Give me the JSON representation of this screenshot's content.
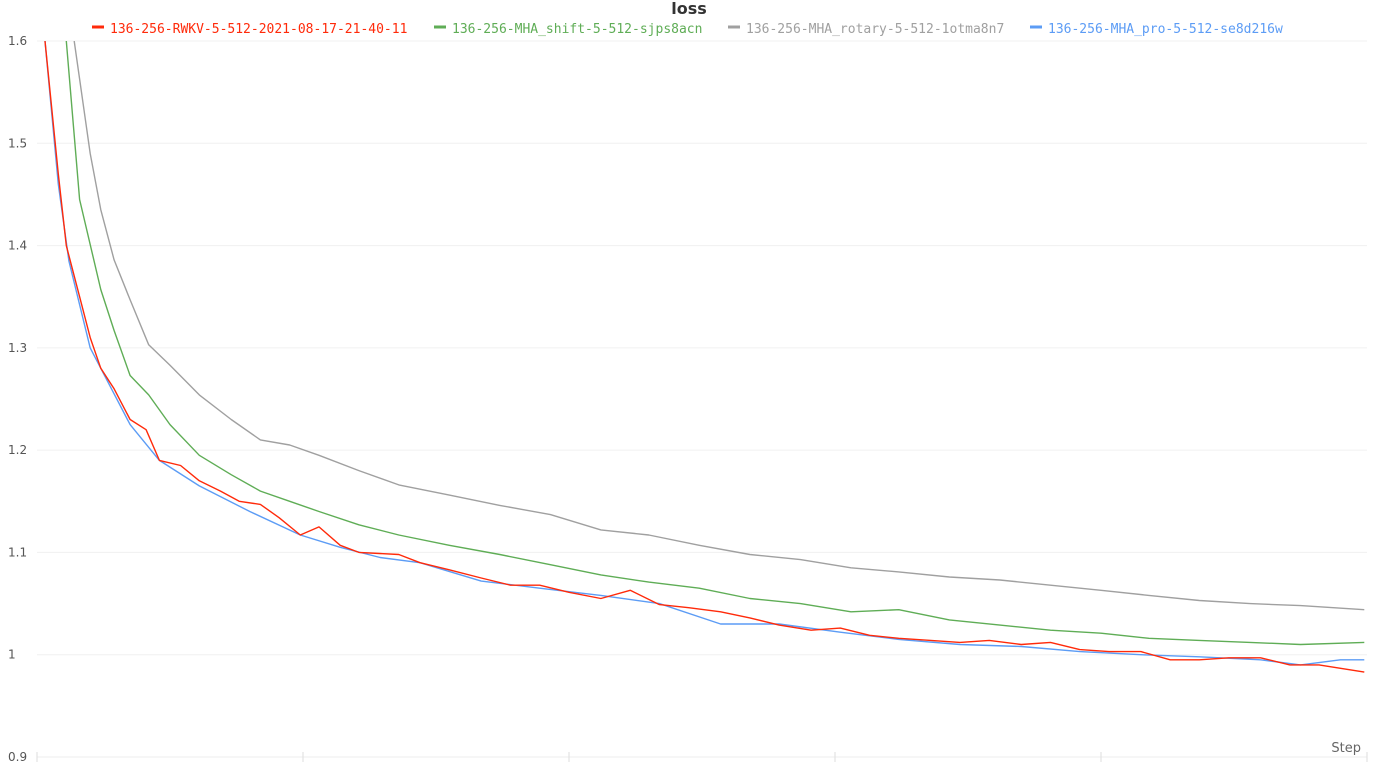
{
  "chart_data": {
    "type": "line",
    "title": "loss",
    "xlabel": "Step",
    "ylabel": "",
    "ylim": [
      0.9,
      1.6
    ],
    "xlim": [
      0,
      5
    ],
    "yticks": [
      "0.9",
      "1",
      "1.1",
      "1.2",
      "1.3",
      "1.4",
      "1.5",
      "1.6"
    ],
    "grid": true,
    "legend_position": "top",
    "series": [
      {
        "name": "136-256-RWKV-5-512-2021-08-17-21-40-11",
        "color": "#ff2a0a",
        "points": [
          [
            0.03,
            1.6
          ],
          [
            0.08,
            1.47
          ],
          [
            0.11,
            1.4
          ],
          [
            0.16,
            1.35
          ],
          [
            0.2,
            1.31
          ],
          [
            0.24,
            1.28
          ],
          [
            0.29,
            1.26
          ],
          [
            0.35,
            1.23
          ],
          [
            0.41,
            1.22
          ],
          [
            0.46,
            1.19
          ],
          [
            0.54,
            1.185
          ],
          [
            0.61,
            1.17
          ],
          [
            0.69,
            1.16
          ],
          [
            0.76,
            1.15
          ],
          [
            0.84,
            1.147
          ],
          [
            0.91,
            1.134
          ],
          [
            0.99,
            1.117
          ],
          [
            1.06,
            1.125
          ],
          [
            1.14,
            1.107
          ],
          [
            1.21,
            1.1
          ],
          [
            1.36,
            1.098
          ],
          [
            1.44,
            1.09
          ],
          [
            1.55,
            1.083
          ],
          [
            1.67,
            1.075
          ],
          [
            1.78,
            1.068
          ],
          [
            1.89,
            1.068
          ],
          [
            2.0,
            1.061
          ],
          [
            2.12,
            1.055
          ],
          [
            2.23,
            1.063
          ],
          [
            2.34,
            1.049
          ],
          [
            2.45,
            1.046
          ],
          [
            2.57,
            1.042
          ],
          [
            2.68,
            1.036
          ],
          [
            2.79,
            1.029
          ],
          [
            2.91,
            1.024
          ],
          [
            3.02,
            1.026
          ],
          [
            3.13,
            1.019
          ],
          [
            3.24,
            1.016
          ],
          [
            3.36,
            1.014
          ],
          [
            3.47,
            1.012
          ],
          [
            3.58,
            1.014
          ],
          [
            3.7,
            1.01
          ],
          [
            3.81,
            1.012
          ],
          [
            3.92,
            1.005
          ],
          [
            4.03,
            1.003
          ],
          [
            4.15,
            1.003
          ],
          [
            4.26,
            0.995
          ],
          [
            4.37,
            0.995
          ],
          [
            4.48,
            0.997
          ],
          [
            4.6,
            0.997
          ],
          [
            4.71,
            0.99
          ],
          [
            4.82,
            0.99
          ],
          [
            4.99,
            0.983
          ]
        ]
      },
      {
        "name": "136-256-MHA_shift-5-512-sjps8acn",
        "color": "#5fad56",
        "points": [
          [
            0.11,
            1.6
          ],
          [
            0.16,
            1.445
          ],
          [
            0.24,
            1.357
          ],
          [
            0.29,
            1.317
          ],
          [
            0.35,
            1.273
          ],
          [
            0.42,
            1.254
          ],
          [
            0.5,
            1.225
          ],
          [
            0.61,
            1.195
          ],
          [
            0.73,
            1.176
          ],
          [
            0.84,
            1.16
          ],
          [
            0.95,
            1.15
          ],
          [
            1.06,
            1.14
          ],
          [
            1.21,
            1.127
          ],
          [
            1.36,
            1.117
          ],
          [
            1.55,
            1.107
          ],
          [
            1.74,
            1.098
          ],
          [
            1.93,
            1.088
          ],
          [
            2.12,
            1.078
          ],
          [
            2.3,
            1.071
          ],
          [
            2.49,
            1.065
          ],
          [
            2.68,
            1.055
          ],
          [
            2.87,
            1.05
          ],
          [
            3.06,
            1.042
          ],
          [
            3.24,
            1.044
          ],
          [
            3.43,
            1.034
          ],
          [
            3.62,
            1.029
          ],
          [
            3.81,
            1.024
          ],
          [
            4.0,
            1.021
          ],
          [
            4.18,
            1.016
          ],
          [
            4.37,
            1.014
          ],
          [
            4.56,
            1.012
          ],
          [
            4.75,
            1.01
          ],
          [
            4.99,
            1.012
          ]
        ]
      },
      {
        "name": "136-256-MHA_rotary-5-512-1otma8n7",
        "color": "#a0a0a0",
        "points": [
          [
            0.14,
            1.6
          ],
          [
            0.2,
            1.49
          ],
          [
            0.24,
            1.435
          ],
          [
            0.29,
            1.386
          ],
          [
            0.35,
            1.347
          ],
          [
            0.42,
            1.303
          ],
          [
            0.5,
            1.283
          ],
          [
            0.61,
            1.254
          ],
          [
            0.73,
            1.23
          ],
          [
            0.84,
            1.21
          ],
          [
            0.95,
            1.205
          ],
          [
            1.06,
            1.195
          ],
          [
            1.21,
            1.18
          ],
          [
            1.36,
            1.166
          ],
          [
            1.55,
            1.156
          ],
          [
            1.74,
            1.146
          ],
          [
            1.93,
            1.137
          ],
          [
            2.12,
            1.122
          ],
          [
            2.3,
            1.117
          ],
          [
            2.49,
            1.107
          ],
          [
            2.68,
            1.098
          ],
          [
            2.87,
            1.093
          ],
          [
            3.06,
            1.085
          ],
          [
            3.24,
            1.081
          ],
          [
            3.43,
            1.076
          ],
          [
            3.62,
            1.073
          ],
          [
            3.81,
            1.068
          ],
          [
            4.0,
            1.063
          ],
          [
            4.18,
            1.058
          ],
          [
            4.37,
            1.053
          ],
          [
            4.56,
            1.05
          ],
          [
            4.75,
            1.048
          ],
          [
            4.99,
            1.044
          ]
        ]
      },
      {
        "name": "136-256-MHA_pro-5-512-se8d216w",
        "color": "#5c9cf5",
        "points": [
          [
            0.03,
            1.6
          ],
          [
            0.08,
            1.46
          ],
          [
            0.12,
            1.385
          ],
          [
            0.2,
            1.3
          ],
          [
            0.27,
            1.265
          ],
          [
            0.35,
            1.225
          ],
          [
            0.46,
            1.19
          ],
          [
            0.61,
            1.165
          ],
          [
            0.8,
            1.14
          ],
          [
            0.99,
            1.117
          ],
          [
            1.14,
            1.105
          ],
          [
            1.29,
            1.095
          ],
          [
            1.44,
            1.09
          ],
          [
            1.67,
            1.072
          ],
          [
            1.89,
            1.065
          ],
          [
            2.12,
            1.058
          ],
          [
            2.34,
            1.05
          ],
          [
            2.57,
            1.03
          ],
          [
            2.79,
            1.03
          ],
          [
            3.02,
            1.022
          ],
          [
            3.24,
            1.015
          ],
          [
            3.47,
            1.01
          ],
          [
            3.7,
            1.008
          ],
          [
            3.92,
            1.003
          ],
          [
            4.15,
            1.0
          ],
          [
            4.37,
            0.998
          ],
          [
            4.6,
            0.995
          ],
          [
            4.75,
            0.99
          ],
          [
            4.9,
            0.995
          ],
          [
            4.99,
            0.995
          ]
        ]
      }
    ]
  }
}
